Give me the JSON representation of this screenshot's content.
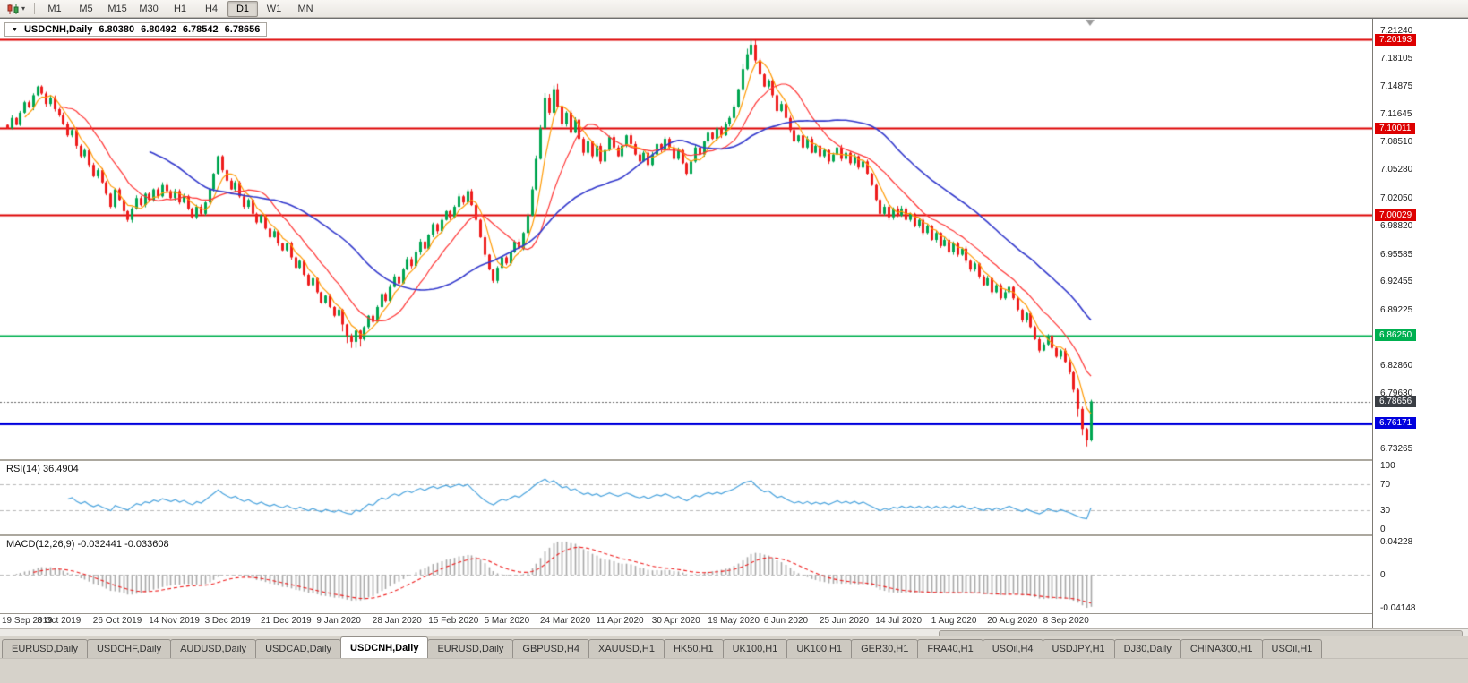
{
  "toolbar": {
    "chart_button_label": "chart-type",
    "timeframes": [
      "M1",
      "M5",
      "M15",
      "M30",
      "H1",
      "H4",
      "D1",
      "W1",
      "MN"
    ],
    "active_timeframe": "D1"
  },
  "chart": {
    "symbol_period": "USDCNH,Daily",
    "open": "6.80380",
    "high": "6.80492",
    "low": "6.78542",
    "close": "6.78656"
  },
  "chart_data": {
    "type": "candlestick",
    "title": "USDCNH,Daily",
    "x_labels": [
      "19 Sep 2019",
      "8 Oct 2019",
      "26 Oct 2019",
      "14 Nov 2019",
      "3 Dec 2019",
      "21 Dec 2019",
      "9 Jan 2020",
      "28 Jan 2020",
      "15 Feb 2020",
      "5 Mar 2020",
      "24 Mar 2020",
      "11 Apr 2020",
      "30 Apr 2020",
      "19 May 2020",
      "6 Jun 2020",
      "25 Jun 2020",
      "14 Jul 2020",
      "1 Aug 2020",
      "20 Aug 2020",
      "8 Sep 2020"
    ],
    "closes": [
      7.1,
      7.112,
      7.104,
      7.118,
      7.13,
      7.124,
      7.138,
      7.148,
      7.14,
      7.128,
      7.135,
      7.122,
      7.115,
      7.105,
      7.092,
      7.098,
      7.08,
      7.068,
      7.075,
      7.058,
      7.045,
      7.052,
      7.038,
      7.025,
      7.01,
      7.03,
      7.018,
      7.005,
      6.995,
      7.008,
      7.02,
      7.012,
      7.025,
      7.018,
      7.03,
      7.022,
      7.035,
      7.028,
      7.02,
      7.028,
      7.015,
      7.022,
      7.008,
      6.998,
      7.01,
      7.002,
      7.015,
      7.03,
      7.048,
      7.068,
      7.052,
      7.04,
      7.03,
      7.038,
      7.022,
      7.01,
      7.018,
      7.002,
      6.992,
      7.0,
      6.985,
      6.975,
      6.982,
      6.968,
      6.96,
      6.968,
      6.952,
      6.94,
      6.948,
      6.932,
      6.92,
      6.928,
      6.912,
      6.9,
      6.908,
      6.895,
      6.885,
      6.892,
      6.875,
      6.862,
      6.855,
      6.868,
      6.858,
      6.872,
      6.885,
      6.878,
      6.895,
      6.91,
      6.902,
      6.918,
      6.93,
      6.922,
      6.938,
      6.95,
      6.942,
      6.958,
      6.97,
      6.962,
      6.978,
      6.99,
      6.982,
      6.995,
      7.005,
      6.998,
      7.01,
      7.022,
      7.015,
      7.028,
      7.012,
      6.995,
      6.975,
      6.955,
      6.938,
      6.925,
      6.94,
      6.952,
      6.945,
      6.958,
      6.97,
      6.962,
      6.98,
      7.0,
      7.03,
      7.065,
      7.1,
      7.135,
      7.118,
      7.145,
      7.125,
      7.105,
      7.118,
      7.095,
      7.11,
      7.088,
      7.072,
      7.085,
      7.068,
      7.08,
      7.062,
      7.075,
      7.09,
      7.078,
      7.068,
      7.08,
      7.092,
      7.082,
      7.07,
      7.062,
      7.072,
      7.058,
      7.07,
      7.082,
      7.075,
      7.088,
      7.078,
      7.065,
      7.075,
      7.06,
      7.048,
      7.062,
      7.078,
      7.07,
      7.085,
      7.095,
      7.088,
      7.1,
      7.092,
      7.105,
      7.112,
      7.125,
      7.145,
      7.168,
      7.185,
      7.196,
      7.178,
      7.162,
      7.148,
      7.155,
      7.138,
      7.12,
      7.128,
      7.112,
      7.098,
      7.085,
      7.092,
      7.078,
      7.088,
      7.072,
      7.08,
      7.068,
      7.075,
      7.062,
      7.07,
      7.078,
      7.065,
      7.072,
      7.06,
      7.068,
      7.055,
      7.062,
      7.048,
      7.035,
      7.018,
      7.002,
      7.01,
      6.998,
      7.008,
      7.0,
      7.008,
      6.995,
      7.002,
      6.988,
      6.995,
      6.98,
      6.988,
      6.972,
      6.98,
      6.965,
      6.972,
      6.958,
      6.968,
      6.955,
      6.962,
      6.948,
      6.938,
      6.945,
      6.93,
      6.92,
      6.928,
      6.912,
      6.92,
      6.905,
      6.912,
      6.918,
      6.905,
      6.892,
      6.88,
      6.888,
      6.872,
      6.858,
      6.845,
      6.852,
      6.862,
      6.848,
      6.838,
      6.845,
      6.832,
      6.82,
      6.8,
      6.778,
      6.755,
      6.742,
      6.7866
    ],
    "y_ticks": [
      "7.21240",
      "7.18105",
      "7.14875",
      "7.11645",
      "7.08510",
      "7.05280",
      "7.02050",
      "6.98820",
      "6.95585",
      "6.92455",
      "6.89225",
      "6.85995",
      "6.82860",
      "6.79630",
      "6.73265"
    ],
    "y_range_top": 7.2124,
    "y_range_bottom": 6.73265,
    "levels": [
      {
        "price": 7.20193,
        "label": "7.20193",
        "color": "#dd0000",
        "width": 2
      },
      {
        "price": 7.10011,
        "label": "7.10011",
        "color": "#dd0000",
        "width": 2
      },
      {
        "price": 7.00029,
        "label": "7.00029",
        "color": "#dd0000",
        "width": 2
      },
      {
        "price": 6.8625,
        "label": "6.86250",
        "color": "#00b050",
        "width": 2
      },
      {
        "price": 6.76171,
        "label": "6.76171",
        "color": "#0000dd",
        "width": 3
      }
    ],
    "bid": {
      "price": 6.78656,
      "label": "6.78656",
      "color": "#3a3e44"
    },
    "up_color": "#00a651",
    "down_color": "#ee1c1c",
    "moving_averages": [
      {
        "name": "fast",
        "period": 5,
        "color": "#ff9900"
      },
      {
        "name": "medium",
        "period": 13,
        "color": "#ff3333"
      },
      {
        "name": "slow",
        "period": 34,
        "color": "#3339cc"
      }
    ],
    "indicators": {
      "rsi": {
        "label": "RSI(14) 36.4904",
        "period": 14,
        "value": 36.4904,
        "levels": [
          100,
          70,
          30,
          0
        ],
        "line_color": "#4aa3dd"
      },
      "macd": {
        "label": "MACD(12,26,9) -0.032441 -0.033608",
        "fast": 12,
        "slow": 26,
        "signal": 9,
        "macd_value": -0.032441,
        "signal_value": -0.033608,
        "axis_top": "0.04228",
        "axis_zero": "0",
        "axis_bottom": "-0.04148",
        "hist_color": "#a8a8a8",
        "signal_color": "#ee1c1c"
      }
    }
  },
  "tabs": {
    "active_index": 4,
    "items": [
      "EURUSD,Daily",
      "USDCHF,Daily",
      "AUDUSD,Daily",
      "USDCAD,Daily",
      "USDCNH,Daily",
      "EURUSD,Daily",
      "GBPUSD,H4",
      "XAUUSD,H1",
      "HK50,H1",
      "UK100,H1",
      "UK100,H1",
      "GER30,H1",
      "FRA40,H1",
      "USOil,H4",
      "USDJPY,H1",
      "DJ30,Daily",
      "CHINA300,H1",
      "USOil,H1"
    ]
  }
}
